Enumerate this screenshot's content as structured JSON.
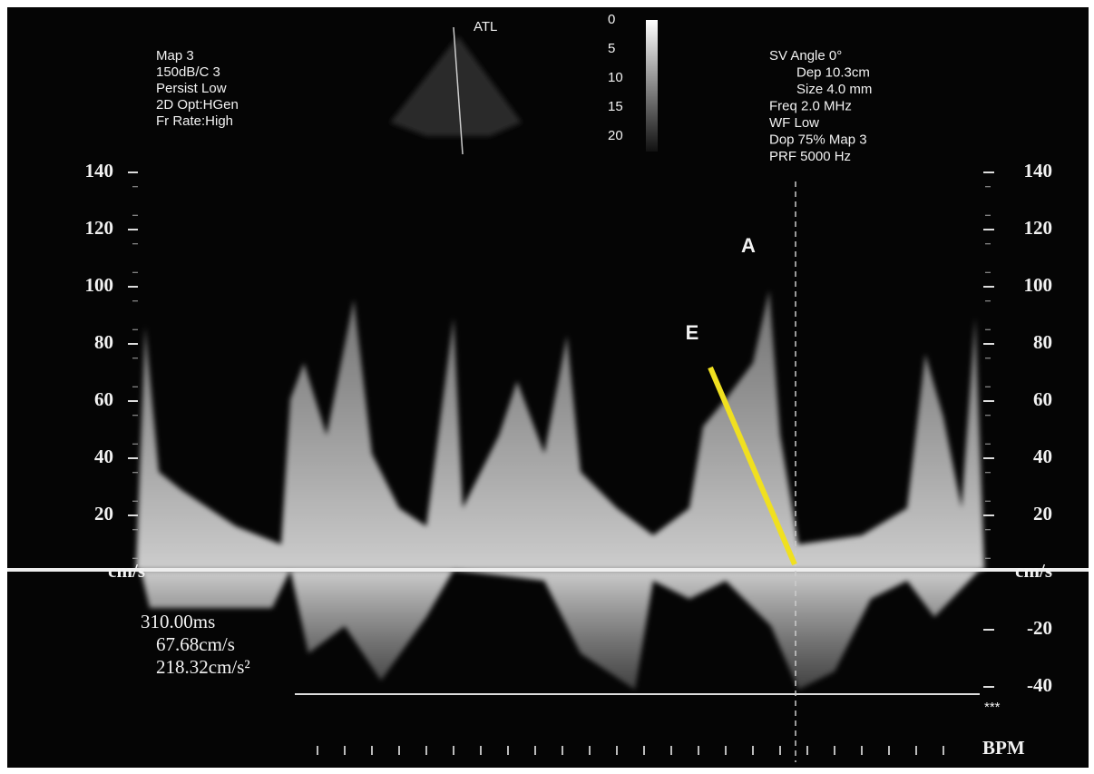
{
  "header_left": [
    "Map 3",
    "150dB/C 3",
    "Persist Low",
    "2D Opt:HGen",
    "Fr Rate:High"
  ],
  "header_right": [
    "SV Angle 0°",
    "Dep 10.3cm",
    "Size 4.0  mm",
    "Freq 2.0  MHz",
    "WF Low",
    "Dop 75%  Map 3",
    "PRF 5000  Hz"
  ],
  "probe_label": "ATL",
  "depth_scale": [
    "0",
    "5",
    "10",
    "15",
    "20"
  ],
  "left_scale": [
    "140",
    "120",
    "100",
    "80",
    "60",
    "40",
    "20",
    "cm/s"
  ],
  "right_scale": [
    "140",
    "120",
    "100",
    "80",
    "60",
    "40",
    "20",
    "cm/s",
    "-20",
    "-40"
  ],
  "measurements": [
    "310.00ms",
    "67.68cm/s",
    "218.32cm/s²"
  ],
  "annotations": {
    "a": "A",
    "e": "E"
  },
  "footer": {
    "stars": "***",
    "bpm": "BPM"
  }
}
